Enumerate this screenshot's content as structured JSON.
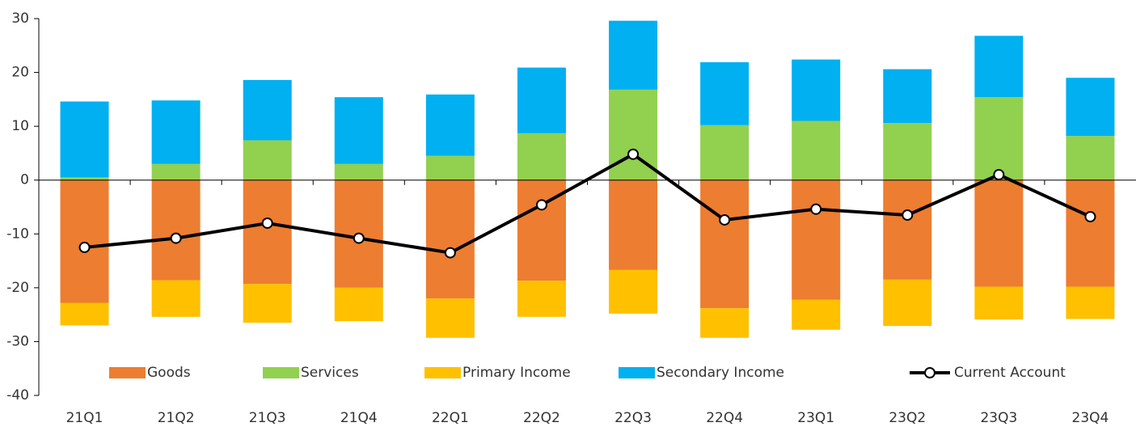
{
  "chart_data": {
    "type": "bar",
    "stacked": true,
    "categories": [
      "21Q1",
      "21Q2",
      "21Q3",
      "21Q4",
      "22Q1",
      "22Q2",
      "22Q3",
      "22Q4",
      "23Q1",
      "23Q2",
      "23Q3",
      "23Q4"
    ],
    "series": [
      {
        "name": "Goods",
        "color": "#ED7D31",
        "values": [
          -22.8,
          -18.6,
          -19.3,
          -20,
          -22,
          -18.7,
          -16.7,
          -23.8,
          -22.2,
          -18.5,
          -19.8,
          -19.8
        ]
      },
      {
        "name": "Services",
        "color": "#92D050",
        "values": [
          0.5,
          3,
          7.4,
          3,
          4.5,
          8.7,
          16.8,
          10.2,
          11,
          10.6,
          15.4,
          8.2
        ]
      },
      {
        "name": "Primary Income",
        "color": "#FFC000",
        "values": [
          -4.2,
          -6.8,
          -7.2,
          -6.2,
          -7.3,
          -6.7,
          -8.1,
          -5.5,
          -5.6,
          -8.6,
          -6.1,
          -6
        ]
      },
      {
        "name": "Secondary Income",
        "color": "#00B0F0",
        "values": [
          14.1,
          11.8,
          11.2,
          12.4,
          11.4,
          12.2,
          12.8,
          11.7,
          11.4,
          10,
          11.4,
          10.8
        ]
      },
      {
        "name": "Current Account",
        "type": "line",
        "color": "#000000",
        "values": [
          -12.5,
          -10.8,
          -8,
          -10.8,
          -13.5,
          -4.6,
          4.8,
          -7.4,
          -5.4,
          -6.5,
          1,
          -6.8
        ]
      }
    ],
    "ylim": [
      -40,
      30
    ],
    "yticks": [
      -40,
      -30,
      -20,
      -10,
      0,
      10,
      20,
      30
    ],
    "legend": "bottom"
  }
}
